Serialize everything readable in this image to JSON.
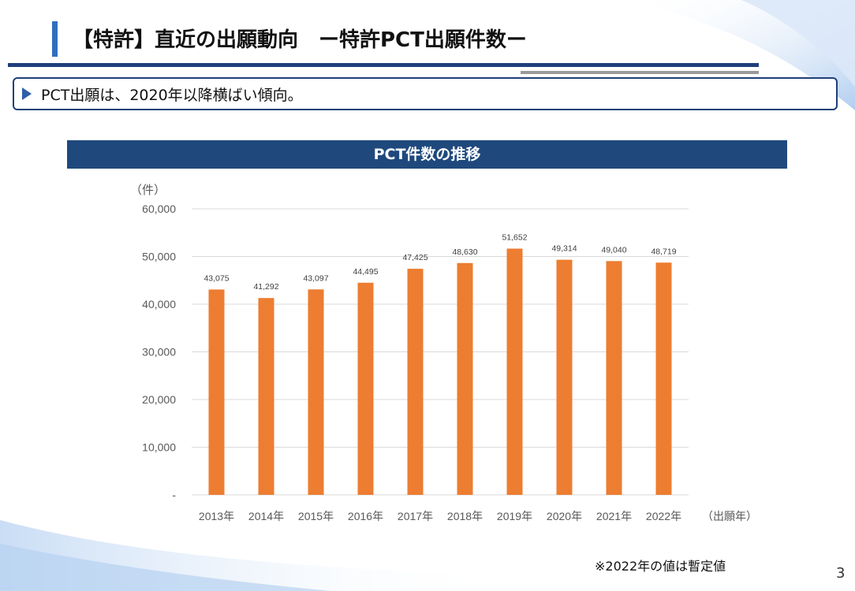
{
  "slide": {
    "title": "【特許】直近の出願動向　ー特許PCT出願件数ー",
    "summary": "PCT出願は、2020年以降横ばい傾向。",
    "footnote": "※2022年の値は暫定値",
    "page_number": "3"
  },
  "chart_header": "PCT件数の推移",
  "chart_data": {
    "type": "bar",
    "title": "PCT件数の推移",
    "ylabel": "（件）",
    "xlabel": "（出願年）",
    "categories": [
      "2013年",
      "2014年",
      "2015年",
      "2016年",
      "2017年",
      "2018年",
      "2019年",
      "2020年",
      "2021年",
      "2022年"
    ],
    "values": [
      43075,
      41292,
      43097,
      44495,
      47425,
      48630,
      51652,
      49314,
      49040,
      48719
    ],
    "value_labels": [
      "43,075",
      "41,292",
      "43,097",
      "44,495",
      "47,425",
      "48,630",
      "51,652",
      "49,314",
      "49,040",
      "48,719"
    ],
    "y_ticks": [
      0,
      10000,
      20000,
      30000,
      40000,
      50000,
      60000
    ],
    "y_tick_labels": [
      "-",
      "10,000",
      "20,000",
      "30,000",
      "40,000",
      "50,000",
      "60,000"
    ],
    "ylim": [
      0,
      60000
    ],
    "grid": true,
    "colors": {
      "bar": "#ed7d31",
      "grid": "#d9d9d9",
      "axis_text": "#595959",
      "header": "#1f497d"
    }
  }
}
